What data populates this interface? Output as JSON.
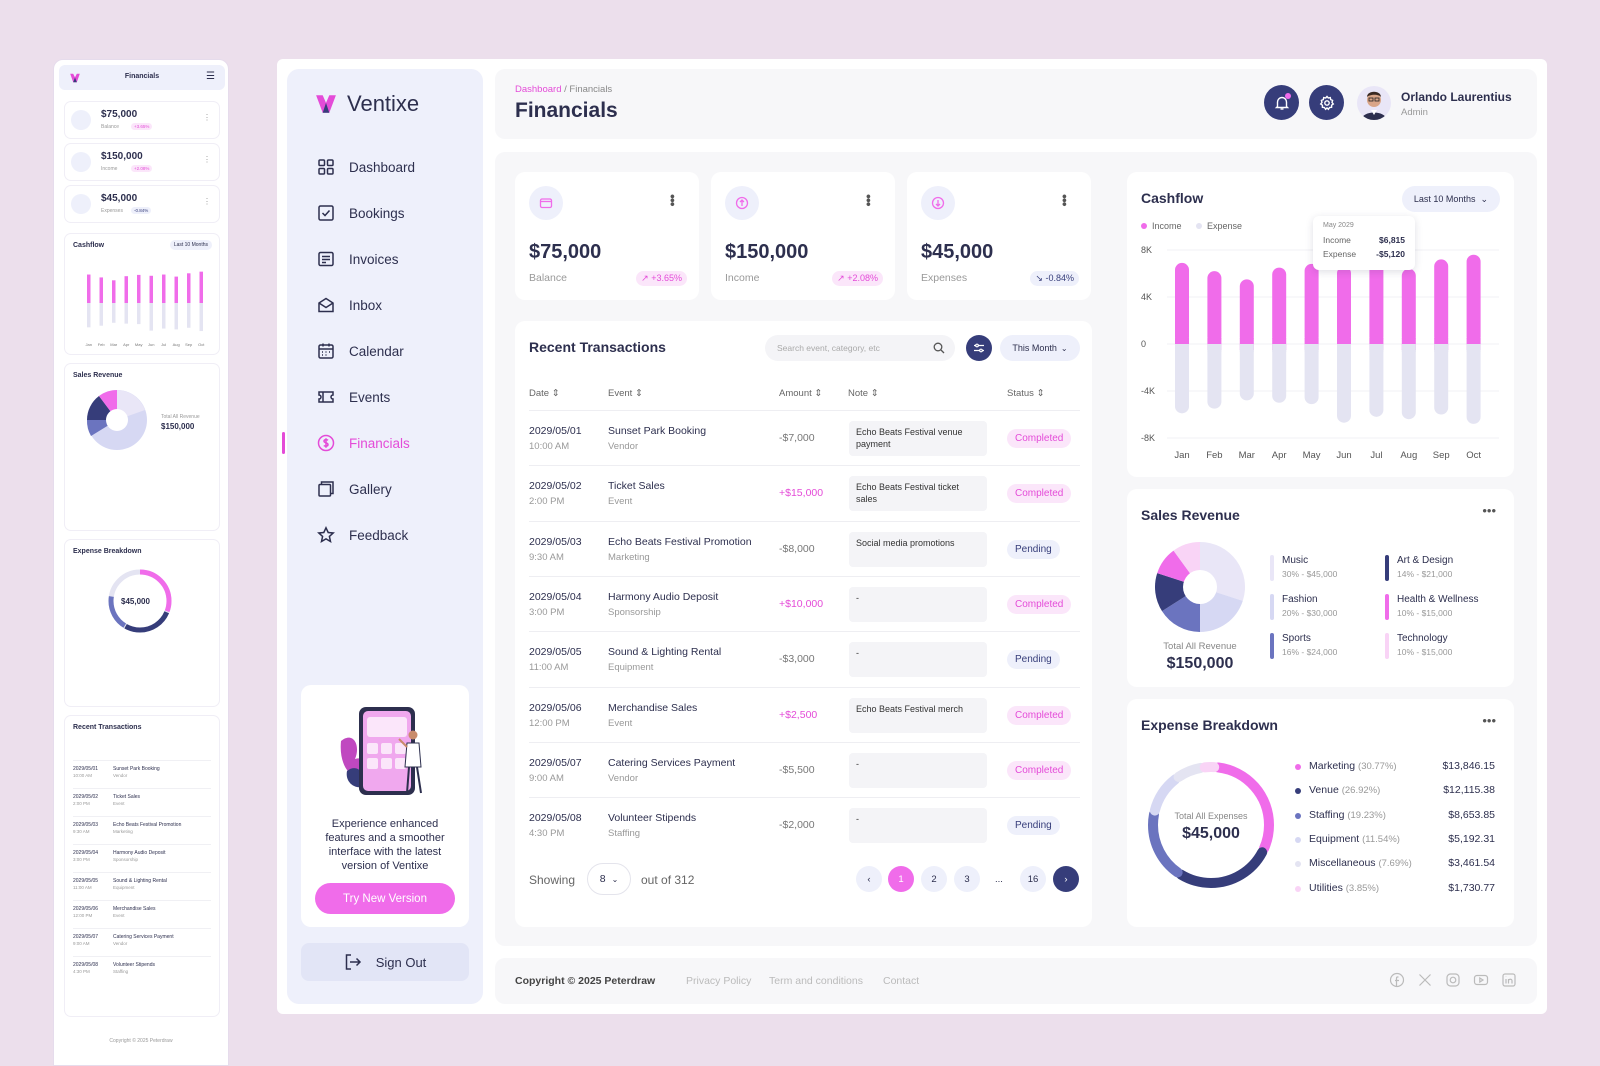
{
  "mobile": {
    "title": "Financials",
    "cards": [
      {
        "value": "$75,000",
        "label": "Balance",
        "badge": "+3.65%"
      },
      {
        "value": "$150,000",
        "label": "Income",
        "badge": "+2.08%"
      },
      {
        "value": "$45,000",
        "label": "Expenses",
        "badge": "-0.84%"
      }
    ],
    "cashflow_title": "Cashflow",
    "cashflow_range": "Last 10 Months",
    "sales_title": "Sales Revenue",
    "sales_total_label": "Total All Revenue",
    "sales_total": "$150,000",
    "expense_title": "Expense Breakdown",
    "expense_total_label": "Total All Expenses",
    "expense_total": "$45,000",
    "tx_title": "Recent Transactions",
    "copyright": "Copyright © 2025 Peterdraw"
  },
  "brand": {
    "name": "Ventixe"
  },
  "nav": [
    {
      "label": "Dashboard",
      "icon": "grid-icon"
    },
    {
      "label": "Bookings",
      "icon": "check-square-icon"
    },
    {
      "label": "Invoices",
      "icon": "invoice-icon"
    },
    {
      "label": "Inbox",
      "icon": "mail-icon"
    },
    {
      "label": "Calendar",
      "icon": "calendar-icon"
    },
    {
      "label": "Events",
      "icon": "ticket-icon"
    },
    {
      "label": "Financials",
      "icon": "dollar-icon",
      "active": true
    },
    {
      "label": "Gallery",
      "icon": "gallery-icon"
    },
    {
      "label": "Feedback",
      "icon": "star-icon"
    }
  ],
  "promo": {
    "text": "Experience enhanced features and a smoother interface with the latest version of Ventixe",
    "button": "Try New Version"
  },
  "signout": "Sign Out",
  "header": {
    "crumb_parent": "Dashboard",
    "crumb_sep": "/",
    "crumb_current": "Financials",
    "title": "Financials",
    "user_name": "Orlando Laurentius",
    "user_role": "Admin"
  },
  "stats": [
    {
      "value": "$75,000",
      "label": "Balance",
      "badge": "+3.65%",
      "trend": "up"
    },
    {
      "value": "$150,000",
      "label": "Income",
      "badge": "+2.08%",
      "trend": "up"
    },
    {
      "value": "$45,000",
      "label": "Expenses",
      "badge": "-0.84%",
      "trend": "down"
    }
  ],
  "transactions": {
    "title": "Recent Transactions",
    "search_placeholder": "Search event, category, etc",
    "range": "This Month",
    "headers": [
      "Date",
      "Event",
      "Amount",
      "Note",
      "Status"
    ],
    "rows": [
      {
        "date": "2029/05/01",
        "time": "10:00 AM",
        "event": "Sunset Park Booking",
        "category": "Vendor",
        "amount": "-$7,000",
        "note": "Echo Beats Festival venue payment",
        "status": "Completed"
      },
      {
        "date": "2029/05/02",
        "time": "2:00 PM",
        "event": "Ticket Sales",
        "category": "Event",
        "amount": "+$15,000",
        "note": "Echo Beats Festival ticket sales",
        "status": "Completed"
      },
      {
        "date": "2029/05/03",
        "time": "9:30 AM",
        "event": "Echo Beats Festival Promotion",
        "category": "Marketing",
        "amount": "-$8,000",
        "note": "Social media promotions",
        "status": "Pending"
      },
      {
        "date": "2029/05/04",
        "time": "3:00 PM",
        "event": "Harmony Audio Deposit",
        "category": "Sponsorship",
        "amount": "+$10,000",
        "note": "-",
        "status": "Completed"
      },
      {
        "date": "2029/05/05",
        "time": "11:00 AM",
        "event": "Sound & Lighting Rental",
        "category": "Equipment",
        "amount": "-$3,000",
        "note": "-",
        "status": "Pending"
      },
      {
        "date": "2029/05/06",
        "time": "12:00 PM",
        "event": "Merchandise Sales",
        "category": "Event",
        "amount": "+$2,500",
        "note": "Echo Beats Festival merch",
        "status": "Completed"
      },
      {
        "date": "2029/05/07",
        "time": "9:00 AM",
        "event": "Catering Services Payment",
        "category": "Vendor",
        "amount": "-$5,500",
        "note": "-",
        "status": "Completed"
      },
      {
        "date": "2029/05/08",
        "time": "4:30 PM",
        "event": "Volunteer Stipends",
        "category": "Staffing",
        "amount": "-$2,000",
        "note": "-",
        "status": "Pending"
      }
    ],
    "showing_label": "Showing",
    "page_size": "8",
    "out_of": "out of 312",
    "pages": [
      "1",
      "2",
      "3",
      "...",
      "16"
    ]
  },
  "cashflow": {
    "title": "Cashflow",
    "range": "Last 10 Months",
    "legend_income": "Income",
    "legend_expense": "Expense",
    "tooltip": {
      "month": "May 2029",
      "income_label": "Income",
      "income": "$6,815",
      "expense_label": "Expense",
      "expense": "-$5,120"
    },
    "colors": {
      "income": "#f06cea",
      "expense": "#e4e4f2"
    }
  },
  "chart_data": {
    "type": "bar",
    "categories": [
      "Jan",
      "Feb",
      "Mar",
      "Apr",
      "May",
      "Jun",
      "Jul",
      "Aug",
      "Sep",
      "Oct"
    ],
    "series": [
      {
        "name": "Income",
        "values": [
          6900,
          6200,
          5500,
          6500,
          6815,
          6600,
          6900,
          6400,
          7200,
          7600
        ]
      },
      {
        "name": "Expense",
        "values": [
          -5900,
          -5500,
          -4800,
          -5000,
          -5120,
          -6700,
          -6200,
          -6400,
          -6000,
          -6800
        ]
      }
    ],
    "yticks": [
      "8K",
      "4K",
      "0",
      "-4K",
      "-8K"
    ],
    "ylim": [
      -8000,
      8000
    ]
  },
  "sales": {
    "title": "Sales Revenue",
    "total_label": "Total All Revenue",
    "total": "$150,000",
    "items": [
      {
        "name": "Music",
        "detail": "30% - $45,000",
        "pct": 30,
        "color": "#e9e6f7"
      },
      {
        "name": "Art & Design",
        "detail": "14% - $21,000",
        "pct": 14,
        "color": "#363d7a"
      },
      {
        "name": "Fashion",
        "detail": "20% - $30,000",
        "pct": 20,
        "color": "#d6d8f3"
      },
      {
        "name": "Health & Wellness",
        "detail": "10% - $15,000",
        "pct": 10,
        "color": "#f06cea"
      },
      {
        "name": "Sports",
        "detail": "16% - $24,000",
        "pct": 16,
        "color": "#6b74bf"
      },
      {
        "name": "Technology",
        "detail": "10% - $15,000",
        "pct": 10,
        "color": "#f9d4f6"
      }
    ]
  },
  "expenses": {
    "title": "Expense Breakdown",
    "total_label": "Total All Expenses",
    "total": "$45,000",
    "items": [
      {
        "name": "Marketing",
        "pct": "(30.77%)",
        "value": "$13,846.15",
        "color": "#f06cea",
        "share": 30.77
      },
      {
        "name": "Venue",
        "pct": "(26.92%)",
        "value": "$12,115.38",
        "color": "#363d7a",
        "share": 26.92
      },
      {
        "name": "Staffing",
        "pct": "(19.23%)",
        "value": "$8,653.85",
        "color": "#6b74bf",
        "share": 19.23
      },
      {
        "name": "Equipment",
        "pct": "(11.54%)",
        "value": "$5,192.31",
        "color": "#d6d8f3",
        "share": 11.54
      },
      {
        "name": "Miscellaneous",
        "pct": "(7.69%)",
        "value": "$3,461.54",
        "color": "#e4e4f2",
        "share": 7.69
      },
      {
        "name": "Utilities",
        "pct": "(3.85%)",
        "value": "$1,730.77",
        "color": "#f9d4f6",
        "share": 3.85
      }
    ]
  },
  "footer": {
    "copyright": "Copyright © 2025 Peterdraw",
    "links": [
      "Privacy Policy",
      "Term and conditions",
      "Contact"
    ],
    "social": [
      "facebook-icon",
      "x-icon",
      "instagram-icon",
      "youtube-icon",
      "linkedin-icon"
    ]
  }
}
